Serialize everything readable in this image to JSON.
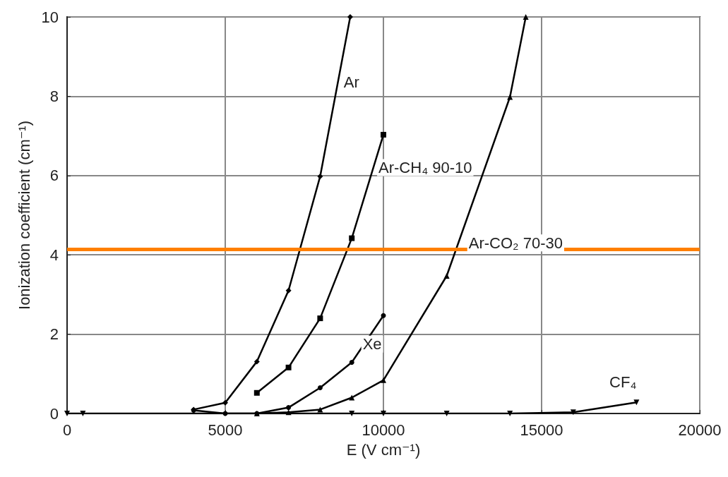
{
  "chart_data": {
    "type": "line",
    "xlabel": "E (V cm⁻¹)",
    "ylabel": "Ionization coefficient (cm⁻¹)",
    "xlim": [
      0,
      20000
    ],
    "xticks": [
      0,
      5000,
      10000,
      15000,
      20000
    ],
    "ylim": [
      0,
      10
    ],
    "yticks": [
      0,
      2,
      4,
      6,
      8,
      10
    ],
    "grid": true,
    "legend": false,
    "series": [
      {
        "name": "Ar",
        "color": "#000000",
        "marker": "diamond",
        "x": [
          4000,
          5000,
          6000,
          7000,
          8000,
          8950
        ],
        "values": [
          0.1,
          0.27,
          1.31,
          3.1,
          5.98,
          10
        ]
      },
      {
        "name": "Ar-CH₄ 90-10",
        "color": "#000000",
        "marker": "square",
        "x": [
          6000,
          7000,
          8000,
          9000,
          10000
        ],
        "values": [
          0.52,
          1.16,
          2.4,
          4.42,
          7.03
        ]
      },
      {
        "name": "Xe",
        "color": "#000000",
        "marker": "circle",
        "x": [
          4000,
          5000,
          6000,
          7000,
          8000,
          9000,
          10000
        ],
        "values": [
          0.08,
          0,
          0,
          0.15,
          0.65,
          1.29,
          2.47
        ]
      },
      {
        "name": "Ar-CO₂ 70-30",
        "color": "#000000",
        "marker": "triangle",
        "x": [
          6000,
          7000,
          8000,
          9000,
          10000,
          12000,
          14000,
          14500
        ],
        "values": [
          0,
          0.03,
          0.1,
          0.4,
          0.84,
          3.47,
          7.98,
          10
        ]
      },
      {
        "name": "CF₄",
        "color": "#000000",
        "marker": "triangle-down",
        "x": [
          0,
          500,
          9000,
          10000,
          12000,
          14000,
          16000,
          18000
        ],
        "values": [
          0,
          0,
          0,
          0,
          0,
          0,
          0.03,
          0.28
        ]
      }
    ],
    "ref_lines": [
      {
        "axis": "y",
        "value": 4.15,
        "color": "#ff7f00",
        "line_style": "solid"
      }
    ]
  }
}
